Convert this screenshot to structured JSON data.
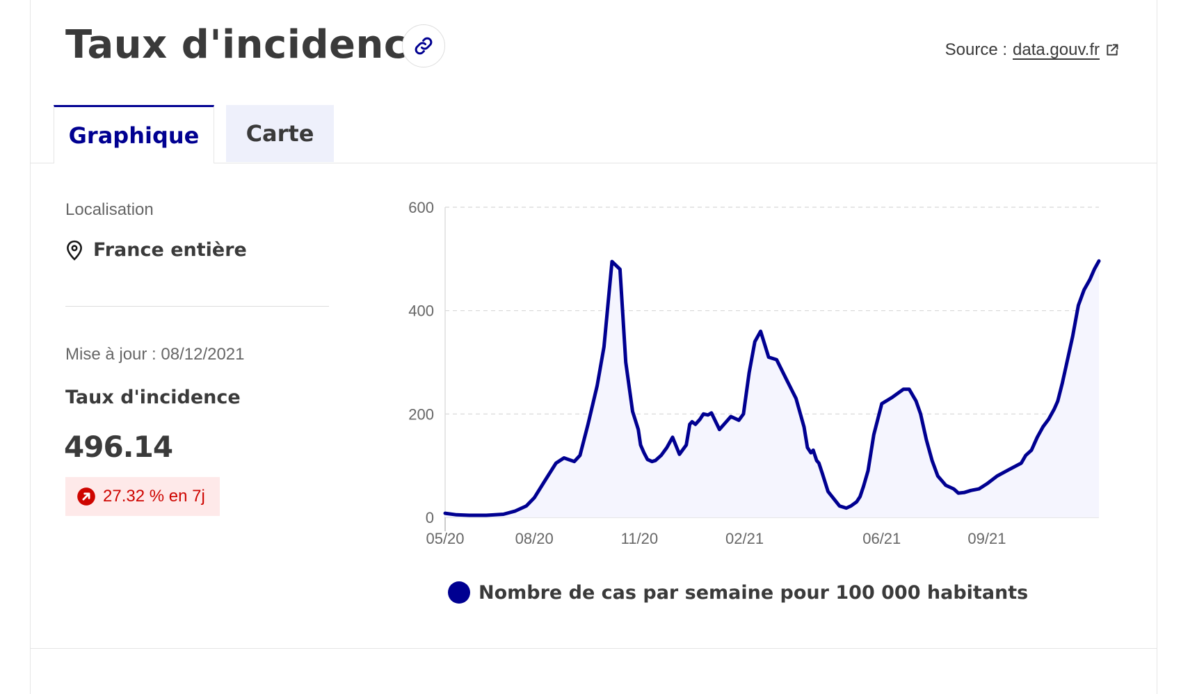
{
  "header": {
    "title": "Taux d'incidence",
    "source_prefix": "Source :",
    "source_link": "data.gouv.fr"
  },
  "tabs": [
    {
      "label": "Graphique",
      "active": true
    },
    {
      "label": "Carte",
      "active": false
    }
  ],
  "sidebar": {
    "location_label": "Localisation",
    "location_value": "France entière",
    "update_text": "Mise à jour : 08/12/2021",
    "metric_label": "Taux d'incidence",
    "metric_value": "496.14",
    "change_text": "27.32 % en 7j"
  },
  "colors": {
    "accent": "#000091",
    "fill": "#f5f5fe",
    "badge_text": "#ce0500",
    "badge_bg": "#fee9e9"
  },
  "icons": {
    "link": "link-icon",
    "external": "external-link-icon",
    "location": "map-pin-icon",
    "trend": "arrow-up-right-circle-icon"
  },
  "chart_data": {
    "type": "area",
    "xlabel": "",
    "ylabel": "",
    "ylim": [
      0,
      600
    ],
    "yticks": [
      0,
      200,
      400,
      600
    ],
    "xticks": [
      "05/20",
      "08/20",
      "11/20",
      "02/21",
      "06/21",
      "09/21"
    ],
    "x_range": [
      "2020-05-15",
      "2021-12-08"
    ],
    "grid": true,
    "legend_position": "bottom",
    "series": [
      {
        "name": "Nombre de cas par semaine pour 100 000 habitants",
        "x": [
          "2020-05-15",
          "2020-05-25",
          "2020-06-05",
          "2020-06-20",
          "2020-07-05",
          "2020-07-15",
          "2020-07-25",
          "2020-08-01",
          "2020-08-10",
          "2020-08-20",
          "2020-08-27",
          "2020-09-05",
          "2020-09-10",
          "2020-09-17",
          "2020-09-25",
          "2020-10-01",
          "2020-10-08",
          "2020-10-15",
          "2020-10-20",
          "2020-10-26",
          "2020-10-31",
          "2020-11-02",
          "2020-11-05",
          "2020-11-08",
          "2020-11-12",
          "2020-11-15",
          "2020-11-20",
          "2020-11-25",
          "2020-11-30",
          "2020-12-06",
          "2020-12-12",
          "2020-12-15",
          "2020-12-17",
          "2020-12-20",
          "2020-12-24",
          "2020-12-27",
          "2020-12-31",
          "2021-01-03",
          "2021-01-10",
          "2021-01-20",
          "2021-01-27",
          "2021-01-31",
          "2021-02-05",
          "2021-02-10",
          "2021-02-15",
          "2021-02-22",
          "2021-03-01",
          "2021-03-10",
          "2021-03-18",
          "2021-03-25",
          "2021-03-28",
          "2021-03-31",
          "2021-04-02",
          "2021-04-05",
          "2021-04-07",
          "2021-04-10",
          "2021-04-15",
          "2021-04-25",
          "2021-05-01",
          "2021-05-05",
          "2021-05-10",
          "2021-05-13",
          "2021-05-16",
          "2021-05-20",
          "2021-05-25",
          "2021-06-01",
          "2021-06-10",
          "2021-06-20",
          "2021-06-25",
          "2021-07-01",
          "2021-07-05",
          "2021-07-10",
          "2021-07-15",
          "2021-07-20",
          "2021-07-27",
          "2021-08-03",
          "2021-08-07",
          "2021-08-12",
          "2021-08-18",
          "2021-08-25",
          "2021-09-01",
          "2021-09-10",
          "2021-09-20",
          "2021-10-01",
          "2021-10-05",
          "2021-10-10",
          "2021-10-15",
          "2021-10-20",
          "2021-10-25",
          "2021-10-30",
          "2021-11-02",
          "2021-11-06",
          "2021-11-10",
          "2021-11-15",
          "2021-11-20",
          "2021-11-25",
          "2021-11-30",
          "2021-12-04",
          "2021-12-08"
        ],
        "y": [
          8,
          5,
          4,
          4,
          6,
          12,
          22,
          38,
          70,
          105,
          115,
          108,
          120,
          180,
          255,
          330,
          495,
          480,
          300,
          205,
          170,
          140,
          125,
          112,
          108,
          110,
          120,
          135,
          155,
          122,
          140,
          180,
          185,
          180,
          190,
          200,
          198,
          202,
          170,
          195,
          188,
          200,
          280,
          340,
          360,
          310,
          305,
          265,
          230,
          175,
          135,
          125,
          130,
          110,
          105,
          85,
          50,
          22,
          18,
          22,
          30,
          40,
          60,
          90,
          160,
          220,
          232,
          248,
          248,
          225,
          200,
          150,
          110,
          80,
          62,
          55,
          47,
          48,
          52,
          55,
          65,
          80,
          92,
          105,
          120,
          130,
          155,
          175,
          190,
          210,
          225,
          260,
          300,
          350,
          410,
          440,
          460,
          480,
          496
        ]
      }
    ]
  }
}
